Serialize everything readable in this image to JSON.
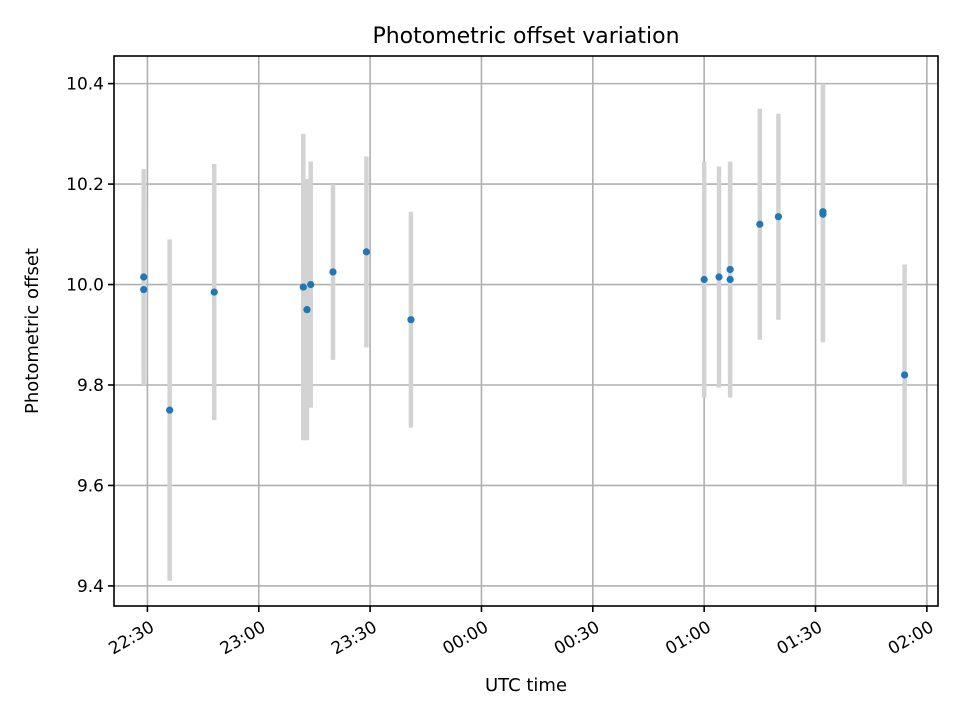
{
  "chart_data": {
    "type": "scatter",
    "title": "Photometric offset variation",
    "xlabel": "UTC time",
    "ylabel": "Photometric offset",
    "x_is_time": true,
    "xlim": [
      "22:21",
      "02:03"
    ],
    "ylim": [
      9.36,
      10.455
    ],
    "xticks": [
      "22:30",
      "23:00",
      "23:30",
      "00:00",
      "00:30",
      "01:00",
      "01:30",
      "02:00"
    ],
    "yticks": [
      "9.4",
      "9.6",
      "9.8",
      "10.0",
      "10.2",
      "10.4"
    ],
    "grid": true,
    "error_color": "#d3d3d3",
    "marker_color": "#1f77b4",
    "points": [
      {
        "t": "22:29",
        "y": 9.99,
        "yerr": 0.17
      },
      {
        "t": "22:29",
        "y": 10.015,
        "yerr": 0.215
      },
      {
        "t": "22:36",
        "y": 9.75,
        "yerr": 0.34
      },
      {
        "t": "22:48",
        "y": 9.985,
        "yerr": 0.255
      },
      {
        "t": "23:12",
        "y": 9.995,
        "yerr": 0.305
      },
      {
        "t": "23:13",
        "y": 9.95,
        "yerr": 0.26
      },
      {
        "t": "23:14",
        "y": 10.0,
        "yerr": 0.245
      },
      {
        "t": "23:20",
        "y": 10.025,
        "yerr": 0.175
      },
      {
        "t": "23:29",
        "y": 10.065,
        "yerr": 0.19
      },
      {
        "t": "23:41",
        "y": 9.93,
        "yerr": 0.215
      },
      {
        "t": "01:00",
        "y": 10.01,
        "yerr": 0.235
      },
      {
        "t": "01:04",
        "y": 10.015,
        "yerr": 0.22
      },
      {
        "t": "01:07",
        "y": 10.03,
        "yerr": 0.215
      },
      {
        "t": "01:07",
        "y": 10.01,
        "yerr": 0.235
      },
      {
        "t": "01:15",
        "y": 10.12,
        "yerr": 0.23
      },
      {
        "t": "01:20",
        "y": 10.135,
        "yerr": 0.205
      },
      {
        "t": "01:32",
        "y": 10.145,
        "yerr": 0.255
      },
      {
        "t": "01:32",
        "y": 10.14,
        "yerr": 0.255
      },
      {
        "t": "01:54",
        "y": 9.82,
        "yerr": 0.22
      }
    ]
  }
}
